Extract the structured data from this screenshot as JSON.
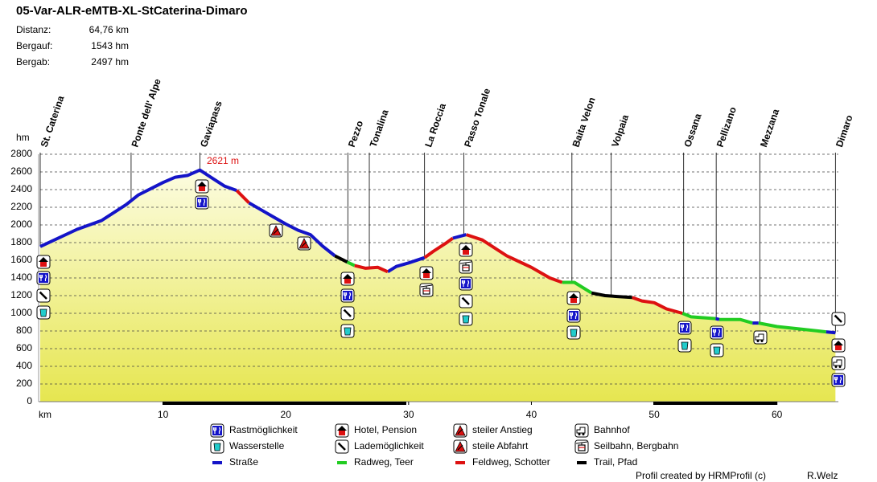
{
  "chart_data": {
    "type": "line",
    "title": "05-Var-ALR-eMTB-XL-StCaterina-Dimaro",
    "stats": [
      [
        "Distanz:",
        "64,76 km"
      ],
      [
        "Bergauf:",
        "1543 hm"
      ],
      [
        "Bergab:",
        "2497 hm"
      ]
    ],
    "ylabel": "hm",
    "xlabel": "km",
    "xlim": [
      0,
      65
    ],
    "xticks": [
      10,
      20,
      30,
      40,
      50,
      60
    ],
    "ylim": [
      0,
      2800
    ],
    "yticks": [
      0,
      200,
      400,
      600,
      800,
      1000,
      1200,
      1400,
      1600,
      1800,
      2000,
      2200,
      2400,
      2600,
      2800
    ],
    "grid": true,
    "peak_label": "2621 m",
    "series": [
      {
        "name": "Straße",
        "color": "#1414c8",
        "x": [
          0,
          3,
          5,
          7,
          8,
          10,
          11,
          12,
          13,
          14,
          15,
          16,
          null,
          17,
          18,
          19,
          20,
          21,
          22,
          23,
          24,
          null,
          28.3,
          29,
          30,
          31.3,
          null,
          33.6,
          34.7,
          null,
          55,
          55.3,
          null,
          58,
          58.5,
          null,
          64,
          64.76
        ],
        "values": [
          1755,
          1950,
          2050,
          2230,
          2340,
          2480,
          2540,
          2560,
          2621,
          2530,
          2440,
          2390,
          null,
          2250,
          2170,
          2090,
          2010,
          1940,
          1890,
          1760,
          1650,
          null,
          1470,
          1530,
          1570,
          1630,
          null,
          1850,
          1890,
          null,
          940,
          930,
          null,
          890,
          890,
          null,
          790,
          780
        ]
      },
      {
        "name": "Radweg, Teer",
        "color": "#22cc22",
        "x": [
          25,
          25.6,
          null,
          42.5,
          43.5,
          44.9,
          null,
          52.3,
          53,
          55,
          null,
          55.3,
          57,
          58,
          null,
          58.5,
          60,
          62,
          64
        ],
        "values": [
          1580,
          1540,
          null,
          1350,
          1350,
          1230,
          null,
          1000,
          960,
          940,
          null,
          930,
          930,
          890,
          null,
          890,
          850,
          820,
          790
        ]
      },
      {
        "name": "Feldweg, Schotter",
        "color": "#dd1111",
        "x": [
          16,
          17,
          null,
          25.6,
          26.5,
          27.5,
          28.3,
          null,
          31.3,
          32,
          33,
          33.6,
          null,
          34.7,
          36,
          38,
          40,
          41.5,
          42.5,
          null,
          48.2,
          49,
          50,
          51,
          52.3
        ],
        "values": [
          2390,
          2250,
          null,
          1540,
          1510,
          1520,
          1470,
          null,
          1630,
          1700,
          1790,
          1850,
          null,
          1890,
          1830,
          1650,
          1520,
          1400,
          1350,
          null,
          1180,
          1140,
          1120,
          1050,
          1000
        ]
      },
      {
        "name": "Trail, Pfad",
        "color": "#000000",
        "x": [
          24,
          25,
          null,
          44.9,
          46,
          47,
          48.2
        ],
        "values": [
          1650,
          1580,
          null,
          1230,
          1200,
          1190,
          1180
        ]
      }
    ],
    "waypoints": [
      {
        "name": "St. Caterina",
        "km": 0
      },
      {
        "name": "Ponte dell' Alpe",
        "km": 7.4
      },
      {
        "name": "Gaviapass",
        "km": 13
      },
      {
        "name": "Pezzo",
        "km": 25.05
      },
      {
        "name": "Tonalina",
        "km": 26.8
      },
      {
        "name": "La Roccia",
        "km": 31.3
      },
      {
        "name": "Passo Tonale",
        "km": 34.5
      },
      {
        "name": "Baita Velon",
        "km": 43.3
      },
      {
        "name": "Volpaia",
        "km": 46.5
      },
      {
        "name": "Ossana",
        "km": 52.4
      },
      {
        "name": "Pellizano",
        "km": 55.05
      },
      {
        "name": "Mezzana",
        "km": 58.6
      },
      {
        "name": "Dimaro",
        "km": 64.76
      }
    ],
    "legend_icons": [
      "Rastmöglichkeit",
      "Wasserstelle",
      "Hotel, Pension",
      "Lademöglichkeit",
      "steiler Anstieg",
      "steile Abfahrt",
      "Bahnhof",
      "Seilbahn, Bergbahn"
    ],
    "footer": [
      "Profil created by HRMProfil (c)",
      "R.Welz"
    ]
  }
}
